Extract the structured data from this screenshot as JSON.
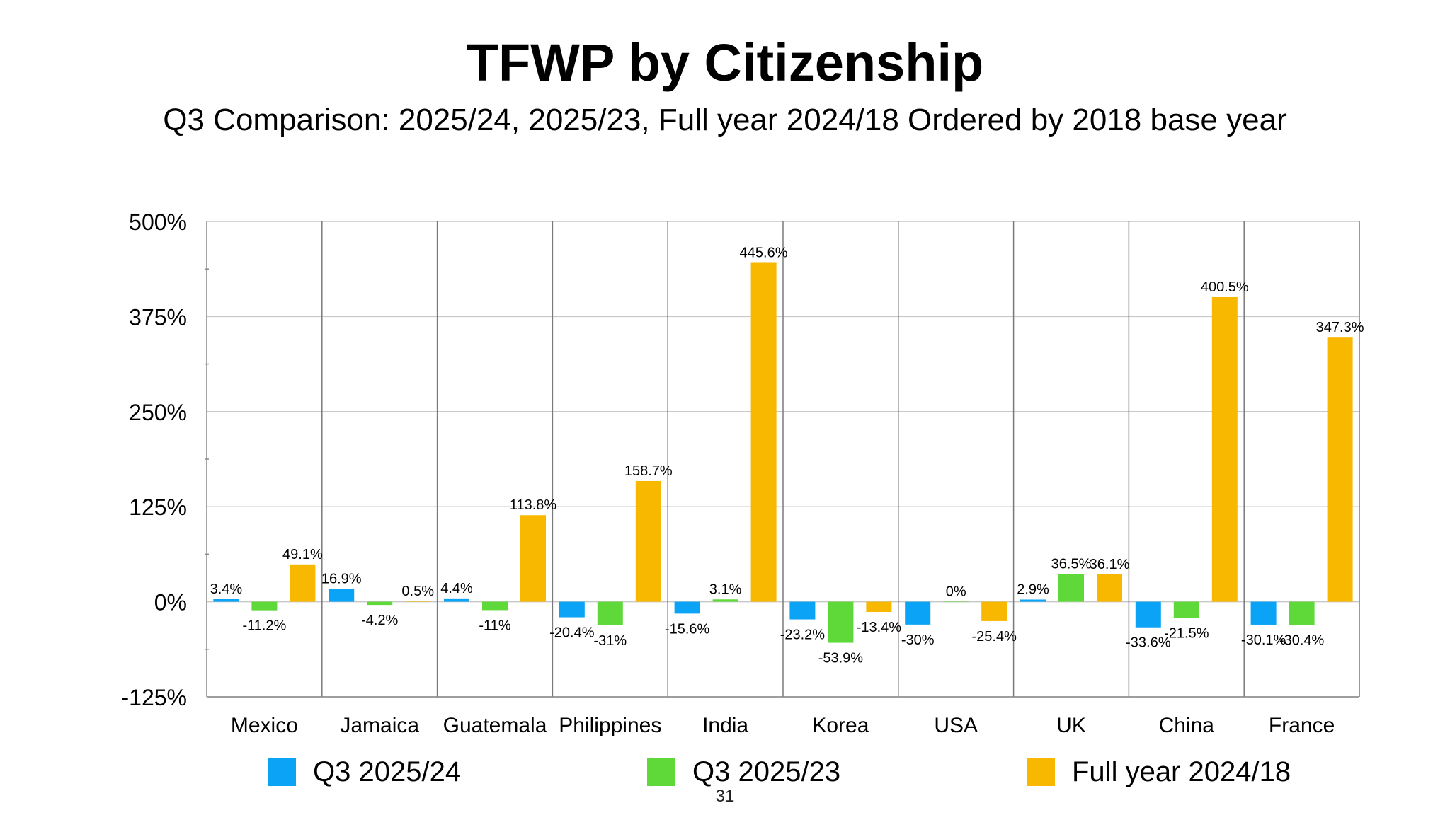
{
  "chart_data": {
    "type": "bar",
    "title": "TFWP by Citizenship",
    "subtitle": "Q3 Comparison: 2025/24, 2025/23, Full year 2024/18 Ordered by 2018 base year",
    "categories": [
      "Mexico",
      "Jamaica",
      "Guatemala",
      "Philippines",
      "India",
      "Korea",
      "USA",
      "UK",
      "China",
      "France"
    ],
    "series": [
      {
        "name": "Q3 2025/24",
        "color": "#0aa3f5",
        "values": [
          3.4,
          16.9,
          4.4,
          -20.4,
          -15.6,
          -23.2,
          -30,
          2.9,
          -33.6,
          -30.1
        ],
        "labels": [
          "3.4%",
          "16.9%",
          "4.4%",
          "-20.4%",
          "-15.6%",
          "-23.2%",
          "-30%",
          "2.9%",
          "-33.6%",
          "-30.1%"
        ]
      },
      {
        "name": "Q3 2025/23",
        "color": "#5fd83a",
        "values": [
          -11.2,
          -4.2,
          -11,
          -31,
          3.1,
          -53.9,
          0,
          36.5,
          -21.5,
          -30.4
        ],
        "labels": [
          "-11.2%",
          "-4.2%",
          "-11%",
          "-31%",
          "3.1%",
          "-53.9%",
          "0%",
          "36.5%",
          "-21.5%",
          "-30.4%"
        ]
      },
      {
        "name": "Full year 2024/18",
        "color": "#f8b800",
        "values": [
          49.1,
          0.5,
          113.8,
          158.7,
          445.6,
          -13.4,
          -25.4,
          36.1,
          400.5,
          347.3
        ],
        "labels": [
          "49.1%",
          "0.5%",
          "113.8%",
          "158.7%",
          "445.6%",
          "-13.4%",
          "-25.4%",
          "36.1%",
          "400.5%",
          "347.3%"
        ]
      }
    ],
    "ylim": [
      -125,
      500
    ],
    "yticks": [
      500,
      375,
      250,
      125,
      0,
      -125
    ],
    "ytick_labels": [
      "500%",
      "375%",
      "250%",
      "125%",
      "0%",
      "-125%"
    ],
    "grid": true,
    "legend_position": "bottom"
  },
  "page_number": "31"
}
